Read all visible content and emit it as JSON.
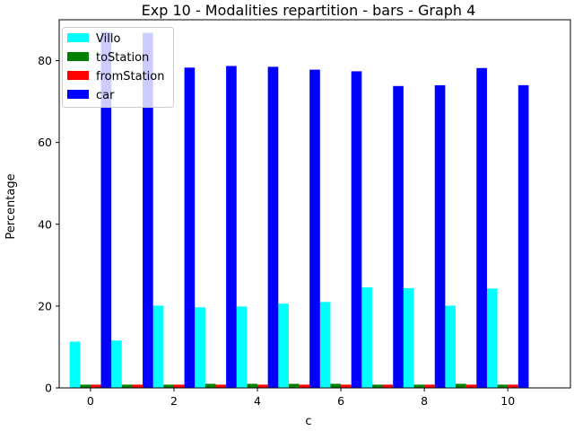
{
  "chart_data": {
    "type": "bar",
    "title": "Exp 10 - Modalities repartition - bars - Graph 4",
    "xlabel": "c",
    "ylabel": "Percentage",
    "xlim": [
      -0.75,
      11.5
    ],
    "ylim": [
      0,
      90
    ],
    "xticks": [
      0,
      2,
      4,
      6,
      8,
      10
    ],
    "yticks": [
      0,
      20,
      40,
      60,
      80
    ],
    "grid": false,
    "legend_position": "top-left",
    "x": [
      0,
      1,
      2,
      3,
      4,
      5,
      6,
      7,
      8,
      9,
      10
    ],
    "series": [
      {
        "name": "Villo",
        "color": "#00ffff",
        "values": [
          11.3,
          11.6,
          20.1,
          19.7,
          19.9,
          20.6,
          21.0,
          24.6,
          24.4,
          20.1,
          24.3
        ]
      },
      {
        "name": "toStation",
        "color": "#008000",
        "values": [
          0.8,
          0.8,
          0.8,
          1.0,
          1.0,
          1.0,
          1.0,
          0.8,
          0.8,
          1.0,
          0.8
        ]
      },
      {
        "name": "fromStation",
        "color": "#ff0000",
        "values": [
          0.8,
          0.8,
          0.8,
          0.8,
          0.8,
          0.8,
          0.8,
          0.8,
          0.8,
          0.8,
          0.8
        ]
      },
      {
        "name": "car",
        "color": "#0000ff",
        "values": [
          87.0,
          86.8,
          78.3,
          78.7,
          78.5,
          77.8,
          77.4,
          73.8,
          74.0,
          78.2,
          74.0
        ]
      }
    ]
  }
}
